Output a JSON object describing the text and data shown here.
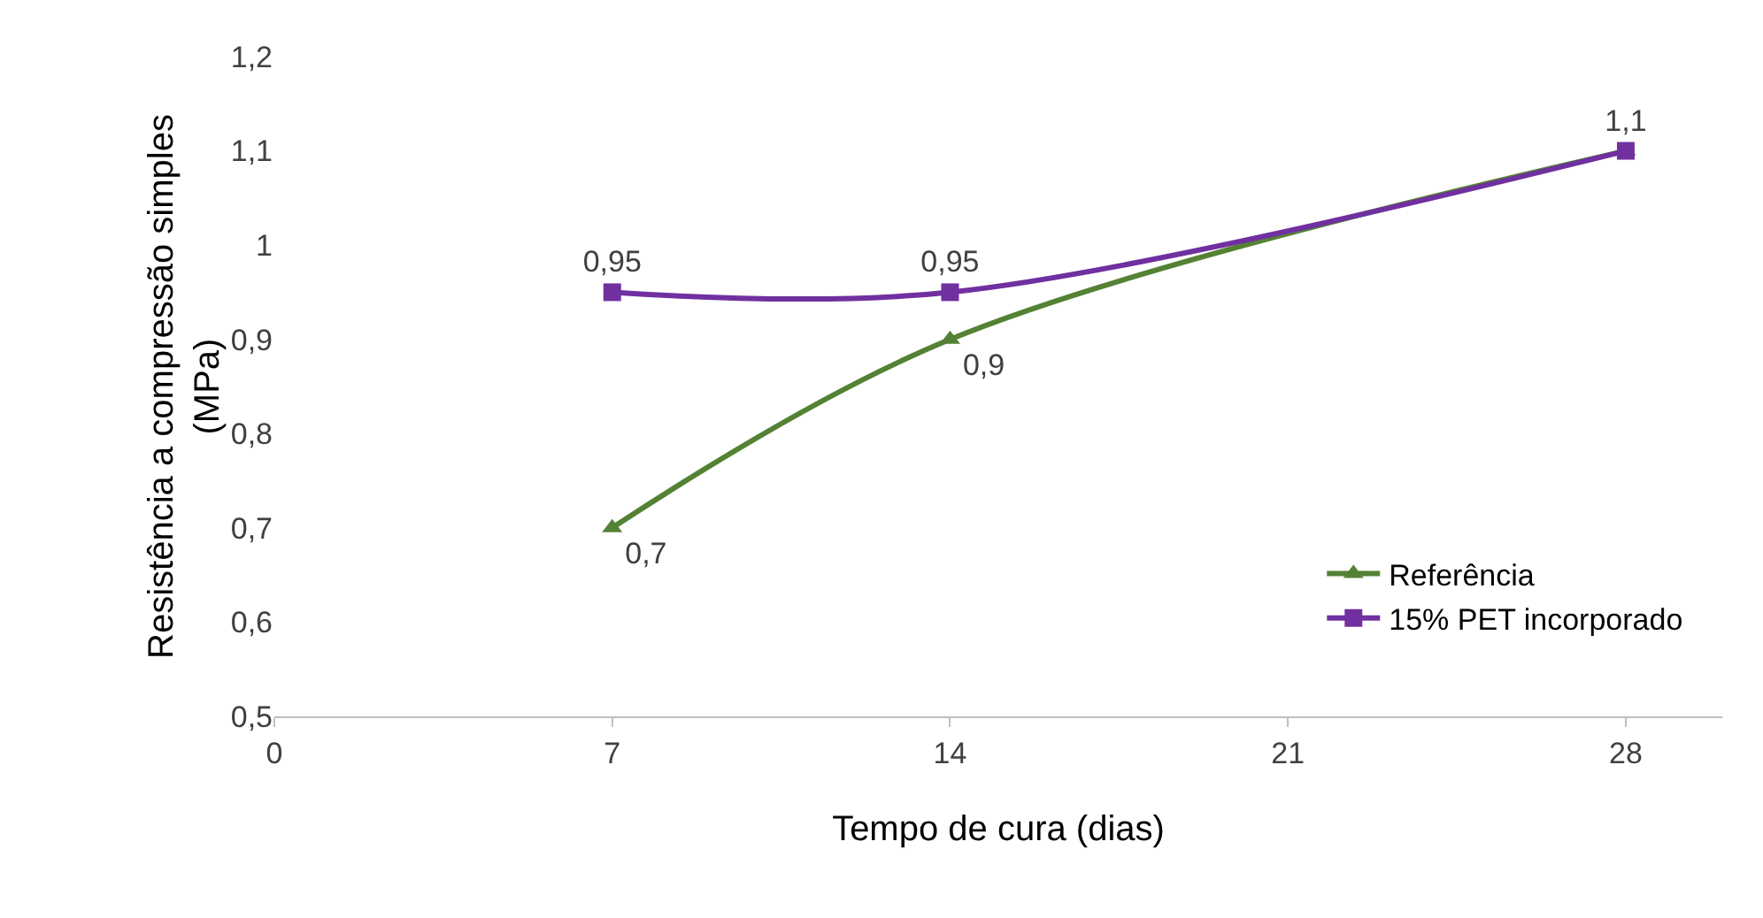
{
  "chart_data": {
    "type": "line",
    "xlabel": "Tempo de cura (dias)",
    "ylabel": "Resistência a compressão simples\n(MPa)",
    "x": [
      7,
      14,
      28
    ],
    "series": [
      {
        "name": "Referência",
        "color": "#548235",
        "values": [
          0.7,
          0.9,
          1.1
        ],
        "marker": "triangle",
        "value_labels": [
          "0,7",
          "0,9",
          null
        ]
      },
      {
        "name": "15% PET incorporado",
        "color": "#7030a0",
        "values": [
          0.95,
          0.95,
          1.1
        ],
        "marker": "square",
        "value_labels": [
          "0,95",
          "0,95",
          "1,1"
        ]
      }
    ],
    "xlim": [
      0,
      30
    ],
    "xticks": [
      0,
      7,
      14,
      21,
      28
    ],
    "ylim": [
      0.5,
      1.2
    ],
    "yticks": [
      {
        "value": 0.5,
        "label": "0,5"
      },
      {
        "value": 0.6,
        "label": "0,6"
      },
      {
        "value": 0.7,
        "label": "0,7"
      },
      {
        "value": 0.8,
        "label": "0,8"
      },
      {
        "value": 0.9,
        "label": "0,9"
      },
      {
        "value": 1,
        "label": "1"
      },
      {
        "value": 1.1,
        "label": "1,1"
      },
      {
        "value": 1.2,
        "label": "1,2"
      }
    ],
    "grid": false,
    "legend": "bottom right",
    "line_style": "solid"
  }
}
